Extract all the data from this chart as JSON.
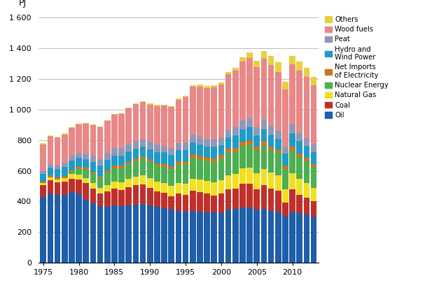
{
  "years": [
    1975,
    1976,
    1977,
    1978,
    1979,
    1980,
    1981,
    1982,
    1983,
    1984,
    1985,
    1986,
    1987,
    1988,
    1989,
    1990,
    1991,
    1992,
    1993,
    1994,
    1995,
    1996,
    1997,
    1998,
    1999,
    2000,
    2001,
    2002,
    2003,
    2004,
    2005,
    2006,
    2007,
    2008,
    2009,
    2010,
    2011,
    2012,
    2013
  ],
  "oil": [
    430,
    450,
    445,
    445,
    460,
    450,
    410,
    390,
    370,
    365,
    375,
    370,
    375,
    380,
    385,
    375,
    365,
    355,
    345,
    340,
    335,
    340,
    335,
    330,
    330,
    325,
    345,
    350,
    360,
    360,
    345,
    350,
    340,
    335,
    300,
    335,
    325,
    315,
    300
  ],
  "coal": [
    75,
    90,
    80,
    85,
    90,
    95,
    110,
    95,
    80,
    100,
    110,
    105,
    120,
    125,
    125,
    115,
    100,
    100,
    90,
    110,
    110,
    130,
    125,
    120,
    110,
    125,
    135,
    135,
    155,
    155,
    135,
    155,
    145,
    135,
    95,
    145,
    120,
    110,
    100
  ],
  "natural_gas": [
    15,
    18,
    20,
    24,
    28,
    30,
    32,
    35,
    38,
    42,
    46,
    50,
    53,
    57,
    60,
    62,
    65,
    65,
    66,
    70,
    73,
    80,
    84,
    84,
    84,
    88,
    92,
    95,
    99,
    106,
    102,
    106,
    102,
    102,
    84,
    102,
    102,
    95,
    88
  ],
  "nuclear": [
    0,
    0,
    0,
    0,
    18,
    40,
    55,
    65,
    68,
    82,
    87,
    92,
    96,
    100,
    110,
    110,
    105,
    105,
    110,
    119,
    124,
    133,
    133,
    133,
    133,
    142,
    147,
    142,
    147,
    151,
    151,
    151,
    147,
    147,
    133,
    147,
    142,
    142,
    138
  ],
  "net_imports": [
    8,
    12,
    10,
    11,
    12,
    14,
    12,
    10,
    12,
    14,
    16,
    17,
    14,
    17,
    15,
    15,
    15,
    17,
    19,
    21,
    19,
    23,
    21,
    23,
    24,
    23,
    23,
    27,
    27,
    27,
    23,
    31,
    23,
    19,
    23,
    27,
    23,
    23,
    19
  ],
  "hydro_wind": [
    50,
    50,
    55,
    59,
    59,
    55,
    55,
    62,
    68,
    68,
    66,
    64,
    66,
    64,
    64,
    64,
    73,
    78,
    71,
    73,
    73,
    78,
    75,
    68,
    75,
    64,
    73,
    82,
    82,
    87,
    73,
    78,
    78,
    68,
    78,
    87,
    82,
    78,
    78
  ],
  "peat": [
    20,
    24,
    26,
    28,
    30,
    32,
    36,
    40,
    40,
    44,
    48,
    50,
    52,
    52,
    48,
    46,
    46,
    44,
    46,
    48,
    50,
    52,
    52,
    50,
    50,
    48,
    52,
    52,
    60,
    60,
    56,
    62,
    58,
    56,
    46,
    60,
    54,
    50,
    46
  ],
  "woodfuels": [
    175,
    182,
    182,
    185,
    185,
    188,
    196,
    203,
    210,
    210,
    218,
    224,
    232,
    239,
    243,
    246,
    254,
    261,
    268,
    283,
    297,
    311,
    326,
    333,
    340,
    348,
    362,
    369,
    384,
    391,
    391,
    399,
    399,
    384,
    370,
    391,
    406,
    399,
    391
  ],
  "others": [
    5,
    5,
    5,
    5,
    5,
    5,
    5,
    5,
    5,
    5,
    5,
    5,
    5,
    5,
    5,
    6,
    6,
    6,
    6,
    6,
    8,
    11,
    11,
    11,
    14,
    14,
    15,
    19,
    27,
    35,
    42,
    50,
    58,
    62,
    54,
    58,
    58,
    58,
    54
  ],
  "colors": {
    "oil": "#1F5EA8",
    "coal": "#C0302B",
    "natural_gas": "#F0E020",
    "nuclear": "#4CAF50",
    "net_imports": "#C87820",
    "hydro_wind": "#1E9BC8",
    "peat": "#9098B8",
    "woodfuels": "#E88888",
    "others": "#E8D040"
  },
  "legend_labels": {
    "oil": "Oil",
    "coal": "Coal",
    "natural_gas": "Natural Gas",
    "nuclear": "Nuclear Energy",
    "net_imports": "Net Imports\nof Electricity",
    "hydro_wind": "Hydro and\nWind Power",
    "peat": "Peat",
    "woodfuels": "Wood fuels",
    "others": "Others"
  },
  "ylim": [
    0,
    1600
  ],
  "yticks": [
    0,
    200,
    400,
    600,
    800,
    1000,
    1200,
    1400,
    1600
  ],
  "ytick_labels": [
    "0",
    "200",
    "400",
    "600",
    "800",
    "1 000",
    "1 200",
    "1 400",
    "1 600"
  ],
  "ylabel": "PJ",
  "background_color": "#ffffff"
}
